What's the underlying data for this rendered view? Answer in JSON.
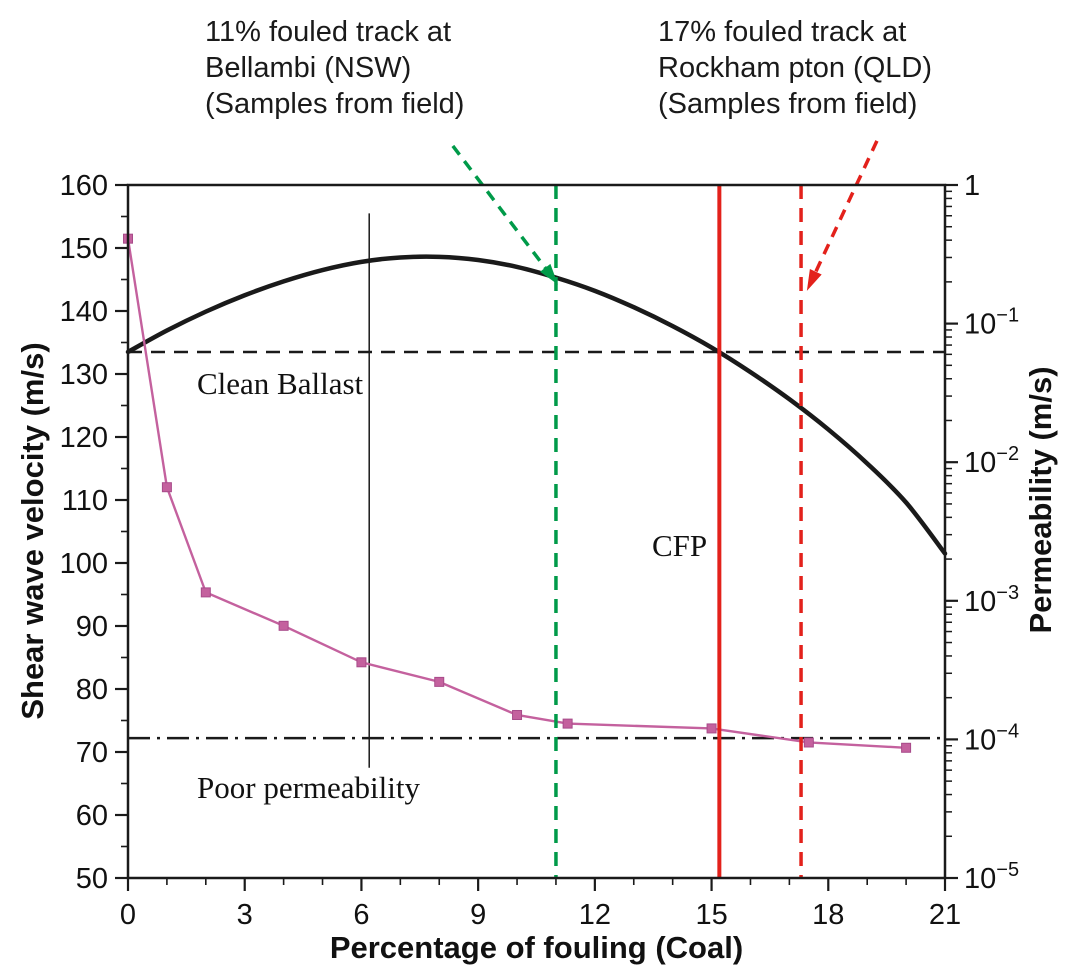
{
  "figure": {
    "background": "#ffffff"
  },
  "annotations": {
    "left_note": {
      "lines": [
        "11% fouled track at",
        "Bellambi (NSW)",
        "(Samples from field)"
      ]
    },
    "right_note": {
      "lines": [
        "17% fouled track at",
        "Rockham pton (QLD)",
        "(Samples from field)"
      ]
    },
    "clean_ballast_label": "Clean Ballast",
    "cfp_label": "CFP",
    "poor_permeability_label": "Poor permeability"
  },
  "chart_data": {
    "type": "line",
    "title": "",
    "xlabel": "Percentage of fouling (Coal)",
    "ylabel_left": "Shear wave velocity (m/s)",
    "ylabel_right": "Permeability (m/s)",
    "xlim": [
      0,
      21
    ],
    "ylim_left": [
      50,
      160
    ],
    "right_axis_log10_range": [
      -5,
      0
    ],
    "x_major_ticks": [
      0,
      3,
      6,
      9,
      12,
      15,
      18,
      21
    ],
    "x_minor_step": 1,
    "y_left_major_ticks": [
      50,
      60,
      70,
      80,
      90,
      100,
      110,
      120,
      130,
      140,
      150,
      160
    ],
    "y_left_minor_step": 5,
    "right_axis_exponents": [
      0,
      -1,
      -2,
      -3,
      -4,
      -5
    ],
    "grid": false,
    "series": [
      {
        "name": "Shear wave velocity",
        "axis": "left",
        "color": "#1a1a1a",
        "width": 4.5,
        "marker": "none",
        "x": [
          0,
          1,
          2,
          3,
          4,
          5,
          6,
          7,
          8,
          9,
          10,
          11,
          12,
          13,
          14,
          15,
          16,
          17,
          18,
          19,
          20,
          21
        ],
        "y": [
          133.5,
          136.9,
          139.9,
          142.5,
          144.7,
          146.5,
          147.8,
          148.5,
          148.6,
          148.1,
          147.0,
          145.3,
          143.2,
          140.6,
          137.6,
          134.2,
          130.3,
          126.0,
          121.2,
          115.8,
          109.6,
          101.5
        ]
      },
      {
        "name": "Permeability",
        "axis": "right",
        "color": "#c4619e",
        "width": 2.4,
        "marker": "square",
        "marker_size": 9,
        "x": [
          0,
          1,
          2,
          4,
          6,
          8,
          10,
          11.3,
          15,
          17.5,
          20
        ],
        "permeability": [
          0.41,
          0.0066,
          0.00115,
          0.00066,
          0.00036,
          0.00026,
          0.00015,
          0.00013,
          0.00012,
          9.5e-05,
          8.7e-05
        ]
      }
    ],
    "reference_lines": [
      {
        "id": "clean-ballast-line",
        "type": "h",
        "value_left_axis": 133.5,
        "style": "dashed",
        "color": "#1a1a1a",
        "width": 2.5
      },
      {
        "id": "poor-permeability-line",
        "type": "h",
        "value_left_axis": 72.2,
        "style": "dashdot",
        "color": "#1a1a1a",
        "width": 2.5
      },
      {
        "id": "marker-line-6pct",
        "type": "v",
        "x": 6.2,
        "v_from": 67.5,
        "v_to": 155.5,
        "style": "solid",
        "color": "#1a1a1a",
        "width": 1.5
      },
      {
        "id": "bellambi-line",
        "type": "v",
        "x": 11,
        "style": "dashed",
        "color": "#009a49",
        "width": 3.5
      },
      {
        "id": "cfp-line",
        "type": "v",
        "x": 15.2,
        "style": "solid",
        "color": "#e3211b",
        "width": 4
      },
      {
        "id": "rockhampton-line",
        "type": "v",
        "x": 17.3,
        "style": "dashed",
        "color": "#e3211b",
        "width": 3.5
      }
    ],
    "arrows": [
      {
        "id": "bellambi-arrow",
        "color": "#009a49",
        "dashed": true,
        "from": {
          "x": 8.35,
          "v": 166.2
        },
        "to": {
          "x": 11.05,
          "v": 144.2
        }
      },
      {
        "id": "rockhampton-arrow",
        "color": "#e3211b",
        "dashed": true,
        "from": {
          "x": 19.25,
          "v": 167.0
        },
        "to": {
          "x": 17.45,
          "v": 143.2
        }
      }
    ]
  }
}
